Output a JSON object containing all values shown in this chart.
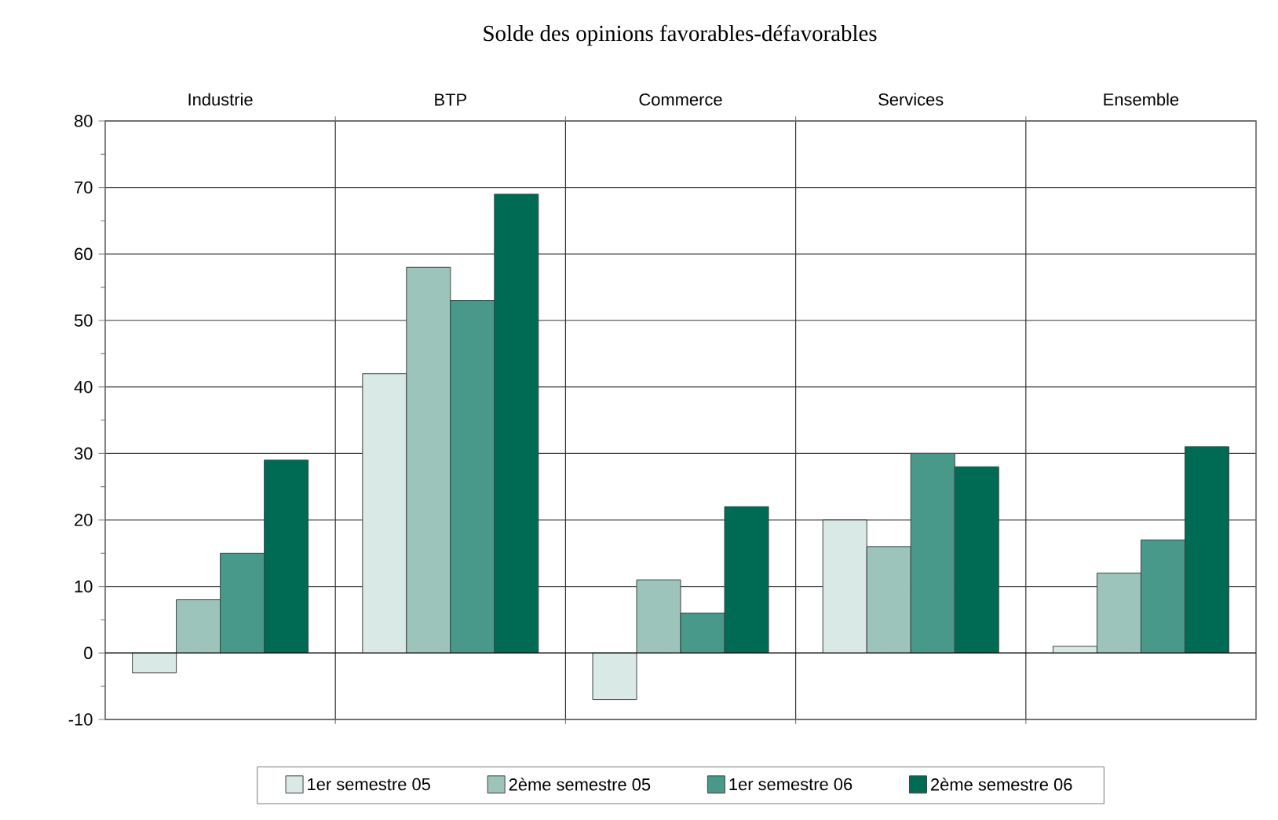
{
  "chart_data": {
    "type": "bar",
    "title": "Solde des opinions favorables-défavorables",
    "categories": [
      "Industrie",
      "BTP",
      "Commerce",
      "Services",
      "Ensemble"
    ],
    "series": [
      {
        "name": "1er semestre 05",
        "color": "#d9e9e5",
        "values": [
          -3,
          42,
          -7,
          20,
          1
        ]
      },
      {
        "name": "2ème semestre 05",
        "color": "#9cc4ba",
        "values": [
          8,
          58,
          11,
          16,
          12
        ]
      },
      {
        "name": "1er semestre 06",
        "color": "#48998a",
        "values": [
          15,
          53,
          6,
          30,
          17
        ]
      },
      {
        "name": "2ème semestre 06",
        "color": "#006b54",
        "values": [
          29,
          69,
          22,
          28,
          31
        ]
      }
    ],
    "ylim": [
      -10,
      80
    ],
    "yticks": [
      -10,
      0,
      10,
      20,
      30,
      40,
      50,
      60,
      70,
      80
    ],
    "grid": true,
    "legend": "bottom"
  }
}
